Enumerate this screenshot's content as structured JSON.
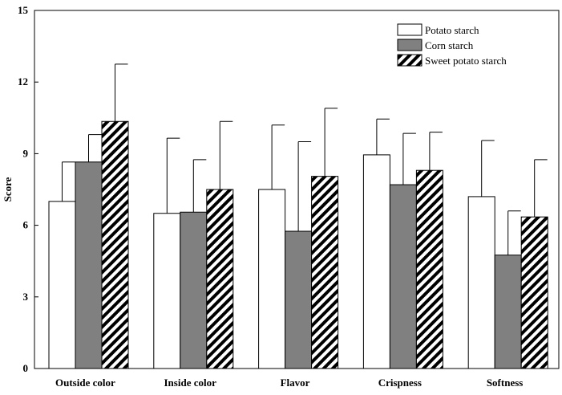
{
  "chart_data": {
    "type": "bar",
    "title": "",
    "xlabel": "",
    "ylabel": "Score",
    "ylim": [
      0,
      15
    ],
    "yticks": [
      "0",
      "3",
      "6",
      "9",
      "12",
      "15"
    ],
    "categories": [
      "Outside color",
      "Inside color",
      "Flavor",
      "Crispness",
      "Softness"
    ],
    "series": [
      {
        "name": "Potato starch",
        "fill": "white",
        "values": [
          7.0,
          6.5,
          7.5,
          8.95,
          7.2
        ],
        "errors": [
          1.65,
          3.15,
          2.7,
          1.5,
          2.35
        ]
      },
      {
        "name": "Corn starch",
        "fill": "gray",
        "values": [
          8.65,
          6.55,
          5.75,
          7.7,
          4.75
        ],
        "errors": [
          1.15,
          2.2,
          3.75,
          2.15,
          1.85
        ]
      },
      {
        "name": "Sweet potato starch",
        "fill": "hatched",
        "values": [
          10.35,
          7.5,
          8.05,
          8.3,
          6.35
        ],
        "errors": [
          2.4,
          2.85,
          2.85,
          1.6,
          2.4
        ]
      }
    ],
    "grid": false,
    "legend_position": "top-right",
    "colors": {
      "white": "#ffffff",
      "gray": "#808080",
      "hatch": "#000000",
      "axis": "#000000"
    }
  }
}
